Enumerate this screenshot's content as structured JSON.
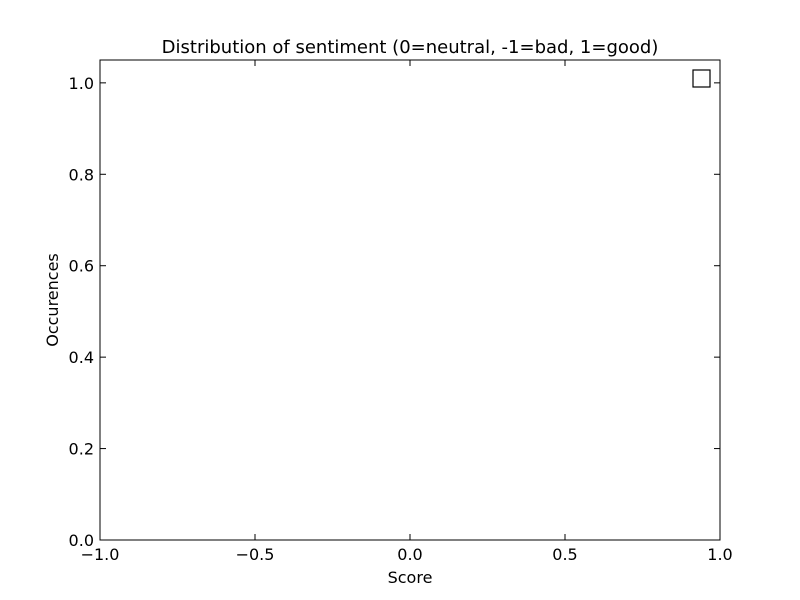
{
  "chart_data": {
    "type": "scatter",
    "title": "Distribution of sentiment (0=neutral, -1=bad, 1=good)",
    "xlabel": "Score",
    "ylabel": "Occurences",
    "xlim": [
      -1.0,
      1.0
    ],
    "ylim": [
      0.0,
      1.05
    ],
    "x_ticks": [
      -1.0,
      -0.5,
      0.0,
      0.5,
      1.0
    ],
    "x_tick_labels": [
      "−1.0",
      "−0.5",
      "0.0",
      "0.5",
      "1.0"
    ],
    "y_ticks": [
      0.0,
      0.2,
      0.4,
      0.6,
      0.8,
      1.0
    ],
    "y_tick_labels": [
      "0.0",
      "0.2",
      "0.4",
      "0.6",
      "0.8",
      "1.0"
    ],
    "grid": false,
    "legend": "top-right",
    "legend_entries": [
      ""
    ],
    "series": [
      {
        "x": [],
        "y": []
      }
    ]
  }
}
